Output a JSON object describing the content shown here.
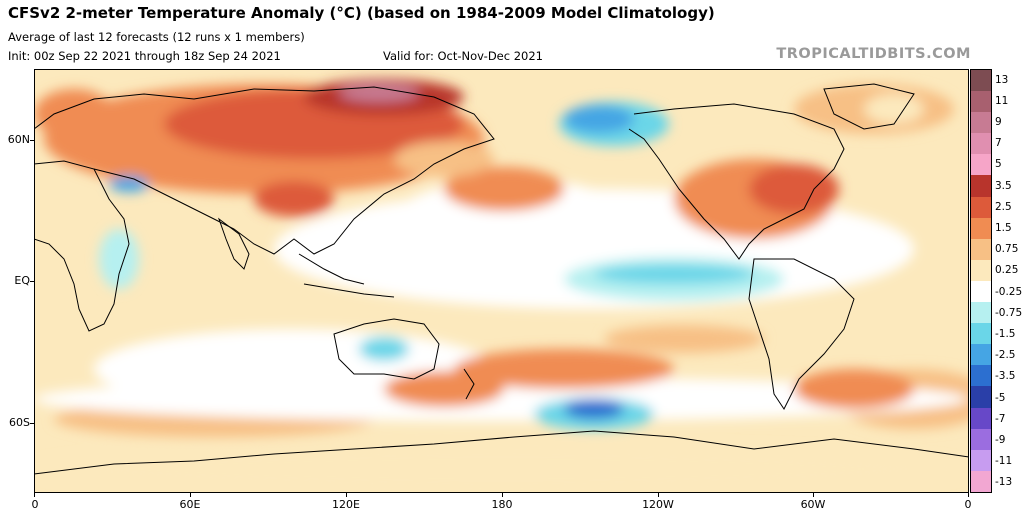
{
  "title": "CFSv2 2-meter Temperature Anomaly (°C) (based on 1984-2009 Model Climatology)",
  "subtitle": "Average of last 12 forecasts (12 runs x 1 members)",
  "init": "Init: 00z Sep 22 2021 through 18z Sep 24 2021",
  "valid": "Valid for: Oct-Nov-Dec 2021",
  "brand": "TROPICALTIDBITS.COM",
  "map": {
    "projection": "equirectangular, centered on 180",
    "lat_labels": [
      {
        "text": "60N",
        "lat": 60
      },
      {
        "text": "EQ",
        "lat": 0
      },
      {
        "text": "60S",
        "lat": -60
      }
    ],
    "lon_labels": [
      {
        "text": "0",
        "lon": 0
      },
      {
        "text": "60E",
        "lon": 60
      },
      {
        "text": "120E",
        "lon": 120
      },
      {
        "text": "180",
        "lon": 180
      },
      {
        "text": "120W",
        "lon": 240
      },
      {
        "text": "60W",
        "lon": 300
      },
      {
        "text": "0",
        "lon": 360
      }
    ],
    "lat_range": [
      -90,
      90
    ],
    "lon_range": [
      0,
      360
    ]
  },
  "colorbar": {
    "labels": [
      "13",
      "11",
      "9",
      "7",
      "5",
      "3.5",
      "2.5",
      "1.5",
      "0.75",
      "0.25",
      "-0.25",
      "-0.75",
      "-1.5",
      "-2.5",
      "-3.5",
      "-5",
      "-7",
      "-9",
      "-11",
      "-13"
    ],
    "colors": [
      "#7d4c52",
      "#a8606f",
      "#c77b93",
      "#e08fb0",
      "#f6a5c8",
      "#b8342c",
      "#dd5a3a",
      "#f08c52",
      "#f7c085",
      "#fce9bd",
      "#ffffff",
      "#b6f0f0",
      "#6ad6e8",
      "#45a5e4",
      "#2c6fd0",
      "#2a3fa8",
      "#6748c8",
      "#9b6de0",
      "#c79cf0",
      "#f2a7d2"
    ]
  },
  "colors": {
    "ocean_white": "#ffffff",
    "warm1": "#fce9bd",
    "warm2": "#f7c085",
    "warm3": "#f08c52",
    "warm4": "#dd5a3a",
    "warm5": "#b8342c",
    "cool1": "#b6f0f0",
    "cool2": "#6ad6e8",
    "cool3": "#45a5e4",
    "cool4": "#2c6fd0",
    "coast": "#000000"
  }
}
